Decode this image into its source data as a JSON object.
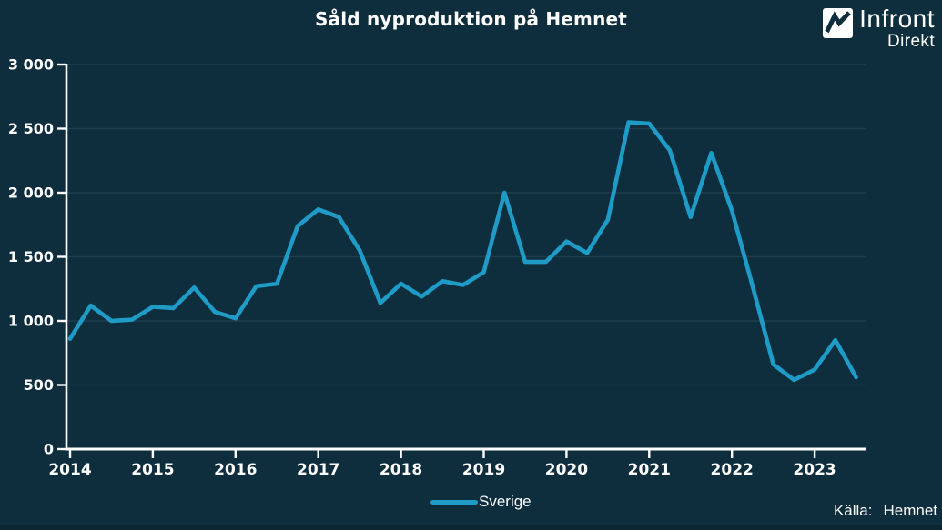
{
  "header": {
    "title": "Såld nyproduktion på Hemnet",
    "logo_main": "Infront",
    "logo_sub": "Direkt"
  },
  "legend": {
    "series_label": "Sverige"
  },
  "footer": {
    "source_label": "Källa:",
    "source_value": "Hemnet"
  },
  "colors": {
    "background": "#0E2D3D",
    "line": "#1E9BC6",
    "axis": "#FFFFFF",
    "grid": "rgba(255,255,255,0.08)",
    "text": "#FFFFFF",
    "bottom_strip": "#0A2430"
  },
  "chart_data": {
    "type": "line",
    "title": "Såld nyproduktion på Hemnet",
    "xlabel": "",
    "ylabel": "",
    "grid": "horizontal",
    "legend_position": "bottom-center",
    "source": "Källa: Hemnet",
    "ylim": [
      0,
      3000
    ],
    "xlim": [
      2014,
      2023.65
    ],
    "y_ticks": [
      0,
      500,
      1000,
      1500,
      2000,
      2500,
      3000
    ],
    "y_tick_labels": [
      "0",
      "500",
      "1 000",
      "1 500",
      "2 000",
      "2 500",
      "3 000"
    ],
    "x_ticks": [
      2014,
      2015,
      2016,
      2017,
      2018,
      2019,
      2020,
      2021,
      2022,
      2023
    ],
    "x_tick_labels": [
      "2014",
      "2015",
      "2016",
      "2017",
      "2018",
      "2019",
      "2020",
      "2021",
      "2022",
      "2023"
    ],
    "series": [
      {
        "name": "Sverige",
        "color": "#1E9BC6",
        "x": [
          2014.0,
          2014.25,
          2014.5,
          2014.75,
          2015.0,
          2015.25,
          2015.5,
          2015.75,
          2016.0,
          2016.25,
          2016.5,
          2016.75,
          2017.0,
          2017.25,
          2017.5,
          2017.75,
          2018.0,
          2018.25,
          2018.5,
          2018.75,
          2019.0,
          2019.25,
          2019.5,
          2019.75,
          2020.0,
          2020.25,
          2020.5,
          2020.75,
          2021.0,
          2021.25,
          2021.5,
          2021.75,
          2022.0,
          2022.25,
          2022.5,
          2022.75,
          2023.0,
          2023.25,
          2023.5
        ],
        "values": [
          860,
          1120,
          1000,
          1010,
          1110,
          1100,
          1260,
          1070,
          1020,
          1270,
          1290,
          1740,
          1870,
          1810,
          1550,
          1140,
          1290,
          1190,
          1310,
          1280,
          1380,
          2000,
          1460,
          1460,
          1620,
          1530,
          1790,
          2550,
          2540,
          2330,
          1810,
          2310,
          1860,
          1270,
          660,
          540,
          620,
          850,
          560
        ]
      }
    ]
  }
}
